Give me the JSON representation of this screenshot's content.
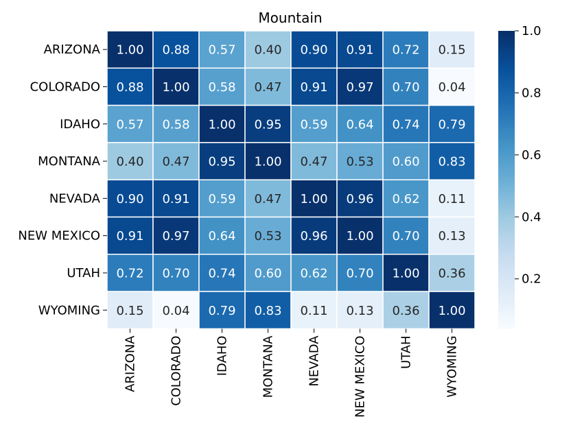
{
  "chart_data": {
    "type": "heatmap",
    "title": "Mountain",
    "xlabel": "",
    "ylabel": "",
    "row_labels": [
      "ARIZONA",
      "COLORADO",
      "IDAHO",
      "MONTANA",
      "NEVADA",
      "NEW MEXICO",
      "UTAH",
      "WYOMING"
    ],
    "col_labels": [
      "ARIZONA",
      "COLORADO",
      "IDAHO",
      "MONTANA",
      "NEVADA",
      "NEW MEXICO",
      "UTAH",
      "WYOMING"
    ],
    "values": [
      [
        1.0,
        0.88,
        0.57,
        0.4,
        0.9,
        0.91,
        0.72,
        0.15
      ],
      [
        0.88,
        1.0,
        0.58,
        0.47,
        0.91,
        0.97,
        0.7,
        0.04
      ],
      [
        0.57,
        0.58,
        1.0,
        0.95,
        0.59,
        0.64,
        0.74,
        0.79
      ],
      [
        0.4,
        0.47,
        0.95,
        1.0,
        0.47,
        0.53,
        0.6,
        0.83
      ],
      [
        0.9,
        0.91,
        0.59,
        0.47,
        1.0,
        0.96,
        0.62,
        0.11
      ],
      [
        0.91,
        0.97,
        0.64,
        0.53,
        0.96,
        1.0,
        0.7,
        0.13
      ],
      [
        0.72,
        0.7,
        0.74,
        0.6,
        0.62,
        0.7,
        1.0,
        0.36
      ],
      [
        0.15,
        0.04,
        0.79,
        0.83,
        0.11,
        0.13,
        0.36,
        1.0
      ]
    ],
    "annotation_format": "2 decimals",
    "colormap": "Blues",
    "color_range": [
      0.04,
      1.0
    ],
    "colorbar_ticks": [
      "0.2",
      "0.4",
      "0.6",
      "0.8",
      "1.0"
    ],
    "colorbar_tick_values": [
      0.2,
      0.4,
      0.6,
      0.8,
      1.0
    ],
    "cell_border_color": "#ffffff",
    "grid": false,
    "legend": "colorbar-right"
  }
}
